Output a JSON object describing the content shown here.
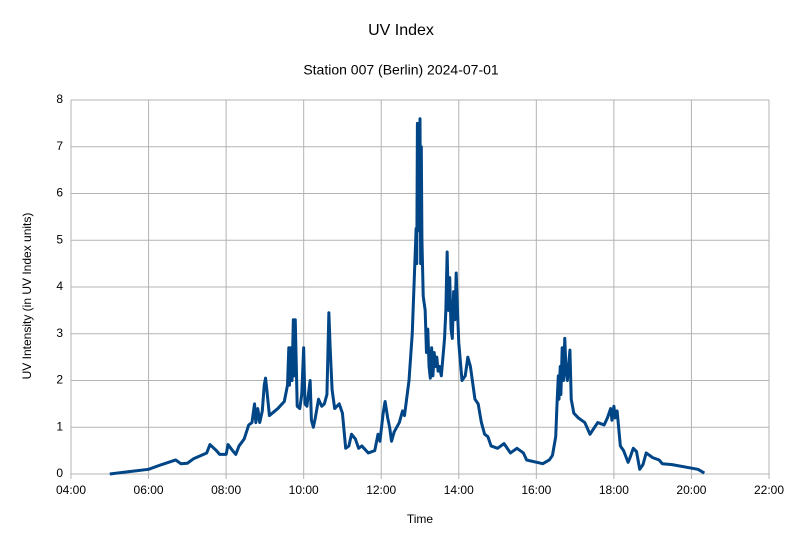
{
  "chart_data": {
    "type": "line",
    "title": "UV Index",
    "subtitle": "Station 007 (Berlin) 2024-07-01",
    "x_label": "Time",
    "y_label": "UV Intensity (in UV Index units)",
    "color": "#004586",
    "grid": true,
    "xlim": [
      "04:00",
      "22:00"
    ],
    "xticks": [
      "04:00",
      "06:00",
      "08:00",
      "10:00",
      "12:00",
      "14:00",
      "16:00",
      "18:00",
      "20:00",
      "22:00"
    ],
    "ylim": [
      0,
      8
    ],
    "yticks": [
      0,
      1,
      2,
      3,
      4,
      5,
      6,
      7,
      8
    ],
    "x": [
      "05:00",
      "05:30",
      "06:00",
      "06:20",
      "06:42",
      "06:50",
      "07:00",
      "07:10",
      "07:30",
      "07:35",
      "07:45",
      "07:50",
      "08:00",
      "08:03",
      "08:10",
      "08:15",
      "08:20",
      "08:28",
      "08:35",
      "08:40",
      "08:44",
      "08:46",
      "08:49",
      "08:52",
      "08:56",
      "08:59",
      "09:01",
      "09:03",
      "09:07",
      "09:20",
      "09:30",
      "09:35",
      "09:37",
      "09:38",
      "09:40",
      "09:42",
      "09:44",
      "09:45",
      "09:47",
      "09:50",
      "09:54",
      "09:57",
      "10:00",
      "10:02",
      "10:05",
      "10:10",
      "10:12",
      "10:15",
      "10:18",
      "10:23",
      "10:28",
      "10:32",
      "10:36",
      "10:39",
      "10:41",
      "10:44",
      "10:48",
      "10:55",
      "11:00",
      "11:05",
      "11:10",
      "11:14",
      "11:20",
      "11:25",
      "11:30",
      "11:40",
      "11:50",
      "11:55",
      "11:58",
      "12:03",
      "12:06",
      "12:10",
      "12:13",
      "12:16",
      "12:20",
      "12:28",
      "12:33",
      "12:36",
      "12:43",
      "12:48",
      "12:54",
      "12:55",
      "12:56",
      "12:57",
      "12:58",
      "12:59",
      "13:00",
      "13:01",
      "13:02",
      "13:03",
      "13:05",
      "13:08",
      "13:10",
      "13:12",
      "13:14",
      "13:16",
      "13:18",
      "13:20",
      "13:22",
      "13:24",
      "13:26",
      "13:28",
      "13:30",
      "13:33",
      "13:38",
      "13:40",
      "13:42",
      "13:44",
      "13:46",
      "13:48",
      "13:50",
      "13:52",
      "13:54",
      "13:56",
      "13:58",
      "14:00",
      "14:05",
      "14:10",
      "14:14",
      "14:18",
      "14:25",
      "14:30",
      "14:35",
      "14:40",
      "14:45",
      "14:50",
      "15:00",
      "15:10",
      "15:20",
      "15:30",
      "15:40",
      "15:45",
      "16:10",
      "16:20",
      "16:25",
      "16:30",
      "16:32",
      "16:34",
      "16:35",
      "16:37",
      "16:38",
      "16:40",
      "16:42",
      "16:44",
      "16:46",
      "16:48",
      "16:52",
      "16:54",
      "16:58",
      "17:05",
      "17:15",
      "17:23",
      "17:35",
      "17:45",
      "17:50",
      "17:55",
      "17:57",
      "18:00",
      "18:02",
      "18:05",
      "18:10",
      "18:15",
      "18:22",
      "18:25",
      "18:30",
      "18:35",
      "18:40",
      "18:45",
      "18:50",
      "19:00",
      "19:10",
      "19:15",
      "19:30",
      "20:10",
      "20:20"
    ],
    "values": [
      0.0,
      0.05,
      0.1,
      0.2,
      0.3,
      0.22,
      0.23,
      0.33,
      0.45,
      0.63,
      0.5,
      0.42,
      0.42,
      0.63,
      0.5,
      0.42,
      0.6,
      0.75,
      1.05,
      1.1,
      1.5,
      1.1,
      1.4,
      1.1,
      1.35,
      1.9,
      2.05,
      1.8,
      1.25,
      1.4,
      1.55,
      1.9,
      2.7,
      1.9,
      2.7,
      2.0,
      3.3,
      2.1,
      3.3,
      1.45,
      1.4,
      1.7,
      2.7,
      1.5,
      1.45,
      2.0,
      1.15,
      1.0,
      1.2,
      1.6,
      1.45,
      1.5,
      1.7,
      3.45,
      2.7,
      1.8,
      1.4,
      1.5,
      1.3,
      0.55,
      0.6,
      0.85,
      0.75,
      0.55,
      0.6,
      0.45,
      0.5,
      0.85,
      0.7,
      1.3,
      1.55,
      1.2,
      1.0,
      0.7,
      0.9,
      1.1,
      1.35,
      1.25,
      2.0,
      3.0,
      5.25,
      4.5,
      7.5,
      5.2,
      7.2,
      5.5,
      7.6,
      4.5,
      7.0,
      5.0,
      3.8,
      3.5,
      2.6,
      3.1,
      2.3,
      2.05,
      2.7,
      2.1,
      2.6,
      2.3,
      2.5,
      2.2,
      2.3,
      2.1,
      2.9,
      3.5,
      4.75,
      3.5,
      4.2,
      3.1,
      2.9,
      3.9,
      3.3,
      4.3,
      3.5,
      2.8,
      2.0,
      2.1,
      2.5,
      2.3,
      1.6,
      1.5,
      1.1,
      0.85,
      0.8,
      0.6,
      0.55,
      0.65,
      0.45,
      0.55,
      0.45,
      0.3,
      0.22,
      0.3,
      0.4,
      0.8,
      1.5,
      2.1,
      1.6,
      2.3,
      1.7,
      2.7,
      2.0,
      2.9,
      2.2,
      2.0,
      2.65,
      1.6,
      1.3,
      1.2,
      1.1,
      0.85,
      1.1,
      1.05,
      1.2,
      1.4,
      1.15,
      1.45,
      1.2,
      1.35,
      0.6,
      0.5,
      0.25,
      0.35,
      0.55,
      0.48,
      0.1,
      0.2,
      0.45,
      0.35,
      0.3,
      0.22,
      0.2,
      0.1,
      0.02
    ]
  }
}
